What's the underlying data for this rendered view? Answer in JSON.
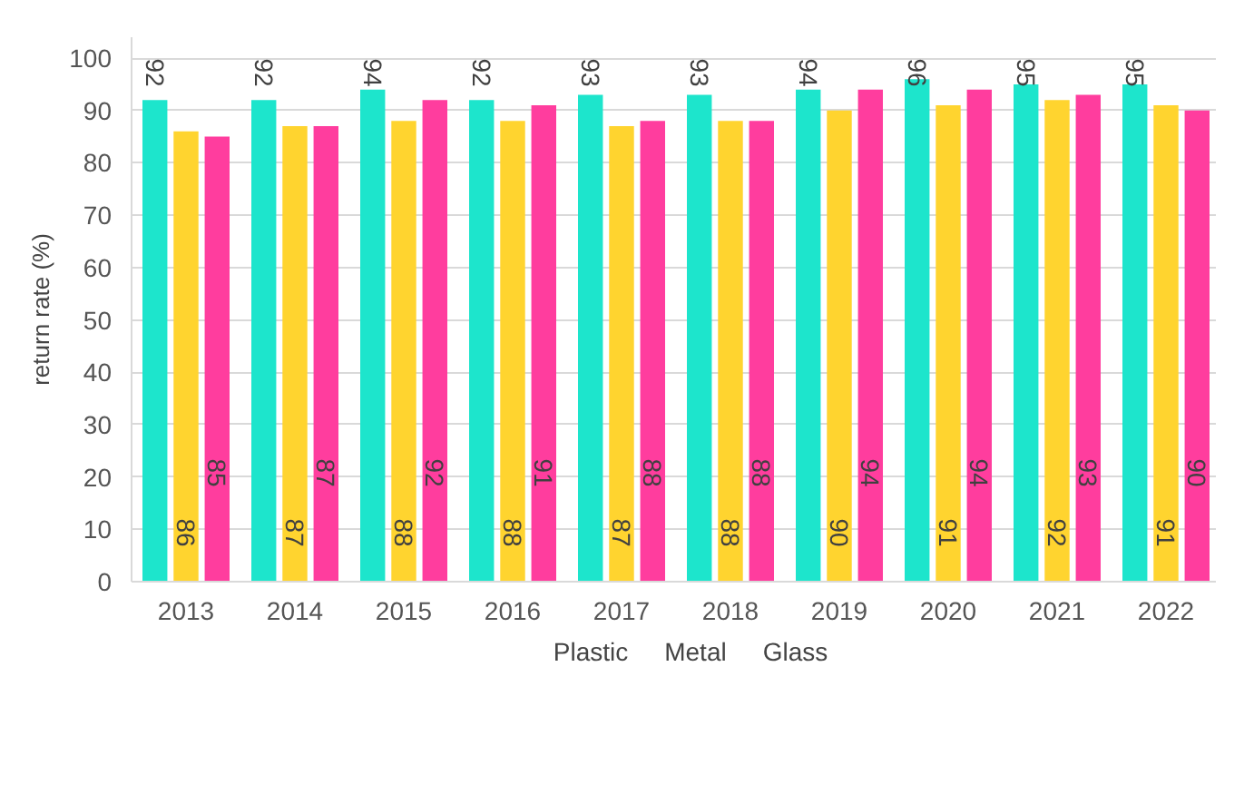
{
  "chart_data": {
    "type": "bar",
    "ylabel": "return rate (%)",
    "categories": [
      "2013",
      "2014",
      "2015",
      "2016",
      "2017",
      "2018",
      "2019",
      "2020",
      "2021",
      "2022"
    ],
    "series": [
      {
        "name": "Plastic",
        "color": "#1de5cc",
        "values": [
          92,
          92,
          94,
          92,
          93,
          93,
          94,
          96,
          95,
          95
        ]
      },
      {
        "name": "Metal",
        "color": "#ffd42f",
        "values": [
          86,
          87,
          88,
          88,
          87,
          88,
          90,
          91,
          92,
          91
        ]
      },
      {
        "name": "Glass",
        "color": "#ff3d9e",
        "values": [
          85,
          87,
          92,
          91,
          88,
          88,
          94,
          94,
          93,
          90
        ]
      }
    ],
    "ylim": [
      0,
      104
    ],
    "yticks": [
      0,
      10,
      20,
      30,
      40,
      50,
      60,
      70,
      80,
      90,
      100
    ],
    "grid": "y",
    "legend": "bottom",
    "data_labels": true
  }
}
